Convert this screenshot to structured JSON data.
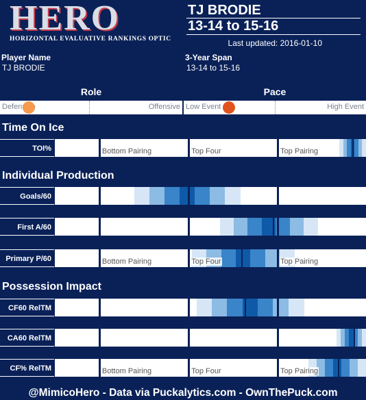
{
  "logo": {
    "word": "HERO",
    "subtitle": "HORIZONTAL EVALUATIVE RANKINGS OPTIC"
  },
  "header": {
    "player_name": "TJ BRODIE",
    "span": "13-14 to 15-16",
    "updated_prefix": "Last updated:",
    "updated_date": "2016-01-10"
  },
  "info": {
    "player_label": "Player Name",
    "player_value": "TJ BRODIE",
    "span_label": "3-Year Span",
    "span_value": "13-14 to 15-16"
  },
  "role": {
    "title": "Role",
    "left": "Defensive",
    "right": "Offensive",
    "value": 0.12,
    "color": "#f59a4e"
  },
  "pace": {
    "title": "Pace",
    "left": "Low Event",
    "right": "High Event",
    "value": 0.21,
    "color": "#e0531f"
  },
  "quartile_labels": [
    "Bottom Pairing",
    "Top Four",
    "Top Pairing"
  ],
  "sections": [
    {
      "title": "Time On Ice",
      "rows": [
        {
          "label": "TOI%",
          "show_quartiles": true,
          "dist_start": 0.915,
          "dist_end": 1.0,
          "median": 0.955
        }
      ]
    },
    {
      "title": "Individual Production",
      "rows": [
        {
          "label": "Goals/60",
          "show_quartiles": false,
          "dist_start": 0.255,
          "dist_end": 0.595,
          "median": 0.43
        },
        {
          "label": "First A/60",
          "show_quartiles": false,
          "dist_start": 0.53,
          "dist_end": 0.845,
          "median": 0.7
        },
        {
          "label": "Primary P/60",
          "show_quartiles": true,
          "dist_start": 0.44,
          "dist_end": 0.77,
          "median": 0.6
        }
      ]
    },
    {
      "title": "Possession Impact",
      "rows": [
        {
          "label": "CF60 RelTM",
          "show_quartiles": false,
          "dist_start": 0.455,
          "dist_end": 0.8,
          "median": 0.61
        },
        {
          "label": "CA60 RelTM",
          "show_quartiles": false,
          "dist_start": 0.905,
          "dist_end": 1.0,
          "median": 0.96
        },
        {
          "label": "CF% RelTM",
          "show_quartiles": true,
          "dist_start": 0.815,
          "dist_end": 1.0,
          "median": 0.91
        }
      ]
    }
  ],
  "footer": "@MimicoHero - Data via Puckalytics.com - OwnThePuck.com"
}
